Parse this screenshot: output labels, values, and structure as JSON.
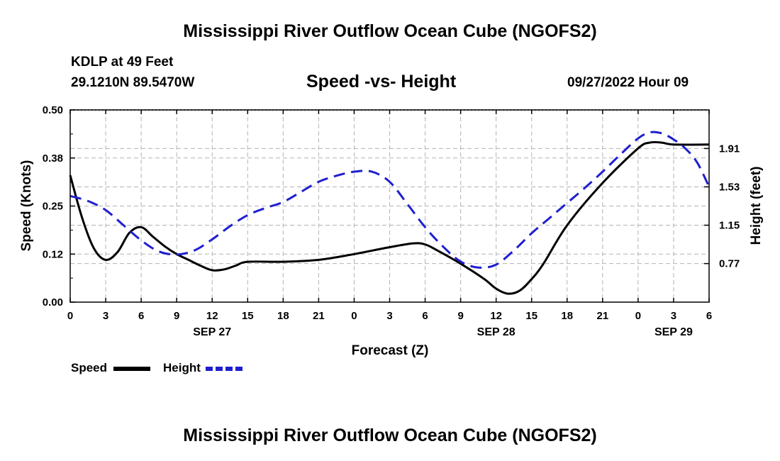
{
  "header": {
    "title": "Mississippi River Outflow Ocean Cube (NGOFS2)",
    "station": "KDLP at 49 Feet",
    "coords": "29.1210N  89.5470W",
    "subtitle": "Speed -vs- Height",
    "datetime": "09/27/2022 Hour 09",
    "bottom_title": "Mississippi River Outflow Ocean Cube (NGOFS2)"
  },
  "legend": {
    "speed_label": "Speed",
    "height_label": "Height"
  },
  "colors": {
    "speed": "#000000",
    "height": "#1f1fd0",
    "grid": "#b3b3b3"
  },
  "chart_data": {
    "type": "line",
    "title": "Speed -vs- Height",
    "xlabel": "Forecast (Z)",
    "ylabel": "Speed (Knots)",
    "y2label": "Height (feet)",
    "x_unit": "hours from 09/27/2022 00Z",
    "xlim": [
      0,
      54
    ],
    "ylim": [
      0,
      0.5
    ],
    "y2lim": [
      0.388,
      2.292
    ],
    "x_ticks": [
      0,
      3,
      6,
      9,
      12,
      15,
      18,
      21,
      24,
      27,
      30,
      33,
      36,
      39,
      42,
      45,
      48,
      51,
      54
    ],
    "x_tick_labels": [
      "0",
      "3",
      "6",
      "9",
      "12",
      "15",
      "18",
      "21",
      "0",
      "3",
      "6",
      "9",
      "12",
      "15",
      "18",
      "21",
      "0",
      "3",
      "6"
    ],
    "date_labels": [
      {
        "x": 12,
        "label": "SEP 27"
      },
      {
        "x": 36,
        "label": "SEP 28"
      },
      {
        "x": 51,
        "label": "SEP 29"
      }
    ],
    "y_ticks": [
      0.0,
      0.125,
      0.25,
      0.375,
      0.5
    ],
    "y_tick_labels": [
      "0.00",
      "0.12",
      "0.25",
      "0.38",
      "0.50"
    ],
    "y2_ticks": [
      0.77,
      1.15,
      1.53,
      1.91
    ],
    "y2_tick_labels": [
      "0.77",
      "1.15",
      "1.53",
      "1.91"
    ],
    "grid": true,
    "series": [
      {
        "name": "Speed",
        "axis": "left",
        "style": "solid",
        "x": [
          0,
          1,
          2,
          3,
          4,
          5,
          6,
          7,
          8,
          9,
          10,
          11,
          12,
          13,
          14,
          15,
          18,
          21,
          24,
          27,
          29,
          30,
          31,
          33,
          35,
          36,
          37,
          38,
          39,
          40,
          42,
          45,
          48,
          49,
          50,
          51,
          54
        ],
        "y": [
          0.33,
          0.22,
          0.14,
          0.11,
          0.13,
          0.18,
          0.195,
          0.17,
          0.145,
          0.125,
          0.11,
          0.095,
          0.083,
          0.085,
          0.095,
          0.105,
          0.105,
          0.11,
          0.125,
          0.143,
          0.153,
          0.15,
          0.135,
          0.1,
          0.06,
          0.035,
          0.022,
          0.03,
          0.06,
          0.1,
          0.2,
          0.31,
          0.4,
          0.415,
          0.415,
          0.41,
          0.41
        ]
      },
      {
        "name": "Height",
        "axis": "right",
        "style": "dashed",
        "x": [
          0,
          1.5,
          3,
          4.5,
          6,
          7.5,
          9,
          10.5,
          12,
          13.5,
          15,
          16.5,
          18,
          19.5,
          21,
          22.5,
          24,
          25.5,
          27,
          28.5,
          30,
          31.5,
          33,
          34.5,
          36,
          37.5,
          39,
          40.5,
          42,
          43.5,
          45,
          46.5,
          48,
          49,
          50,
          51,
          52,
          53,
          54
        ],
        "y": [
          1.44,
          1.39,
          1.3,
          1.15,
          1.0,
          0.89,
          0.86,
          0.9,
          1.01,
          1.14,
          1.25,
          1.32,
          1.38,
          1.48,
          1.58,
          1.64,
          1.68,
          1.68,
          1.58,
          1.36,
          1.13,
          0.94,
          0.79,
          0.73,
          0.76,
          0.9,
          1.07,
          1.22,
          1.37,
          1.52,
          1.68,
          1.85,
          2.01,
          2.07,
          2.06,
          2.0,
          1.91,
          1.77,
          1.53
        ]
      }
    ]
  }
}
